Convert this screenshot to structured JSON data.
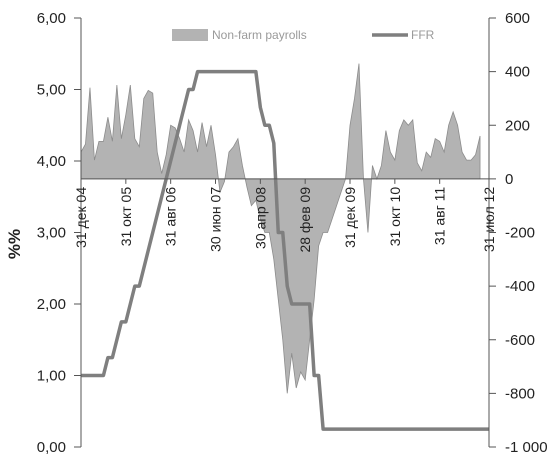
{
  "chart_data": {
    "type": "line",
    "ylabel": "%%",
    "y_left": {
      "min": 0,
      "max": 6,
      "ticks": [
        "0,00",
        "1,00",
        "2,00",
        "3,00",
        "4,00",
        "5,00",
        "6,00"
      ]
    },
    "y_right": {
      "min": -1000,
      "max": 600,
      "ticks": [
        "-1 000",
        "-800",
        "-600",
        "-400",
        "-200",
        "0",
        "200",
        "400",
        "600"
      ]
    },
    "x_tick_labels": [
      "31 дек 04",
      "31 окт 05",
      "31 авг 06",
      "30 июн 07",
      "30 апр 08",
      "28 фев 09",
      "31 дек 09",
      "31 окт 10",
      "31 авг 11",
      "31 июл 12"
    ],
    "x_tick_months": [
      0,
      10,
      20,
      30,
      40,
      50,
      60,
      70,
      80,
      91
    ],
    "legend_position": "top",
    "series": [
      {
        "name": "Non-farm payrolls",
        "kind": "area",
        "axis": "right",
        "color": "#b3b3b3",
        "values": [
          100,
          130,
          340,
          70,
          140,
          140,
          230,
          140,
          350,
          150,
          240,
          350,
          150,
          120,
          300,
          330,
          320,
          100,
          20,
          90,
          200,
          190,
          150,
          100,
          220,
          180,
          100,
          210,
          120,
          200,
          90,
          -50,
          -10,
          100,
          120,
          150,
          50,
          -30,
          -100,
          -80,
          -150,
          -200,
          -200,
          -300,
          -450,
          -600,
          -800,
          -650,
          -780,
          -720,
          -750,
          -600,
          -450,
          -250,
          -200,
          -200,
          -150,
          -100,
          -50,
          0,
          200,
          300,
          430,
          0,
          -200,
          50,
          0,
          50,
          180,
          100,
          70,
          180,
          220,
          200,
          220,
          60,
          30,
          100,
          80,
          150,
          140,
          100,
          200,
          250,
          200,
          100,
          70,
          70,
          90,
          160
        ]
      },
      {
        "name": "FFR",
        "kind": "line",
        "axis": "left",
        "color": "#7f7f7f",
        "values": [
          1.0,
          1.0,
          1.0,
          1.0,
          1.0,
          1.0,
          1.25,
          1.25,
          1.5,
          1.75,
          1.75,
          2.0,
          2.25,
          2.25,
          2.5,
          2.75,
          3.0,
          3.25,
          3.5,
          3.75,
          4.0,
          4.25,
          4.5,
          4.75,
          5.0,
          5.0,
          5.25,
          5.25,
          5.25,
          5.25,
          5.25,
          5.25,
          5.25,
          5.25,
          5.25,
          5.25,
          5.25,
          5.25,
          5.25,
          5.25,
          4.75,
          4.5,
          4.5,
          4.25,
          3.0,
          3.0,
          2.25,
          2.0,
          2.0,
          2.0,
          2.0,
          2.0,
          1.0,
          1.0,
          0.25,
          0.25,
          0.25,
          0.25,
          0.25,
          0.25,
          0.25,
          0.25,
          0.25,
          0.25,
          0.25,
          0.25,
          0.25,
          0.25,
          0.25,
          0.25,
          0.25,
          0.25,
          0.25,
          0.25,
          0.25,
          0.25,
          0.25,
          0.25,
          0.25,
          0.25,
          0.25,
          0.25,
          0.25,
          0.25,
          0.25,
          0.25,
          0.25,
          0.25,
          0.25,
          0.25,
          0.25,
          0.25
        ]
      }
    ]
  }
}
